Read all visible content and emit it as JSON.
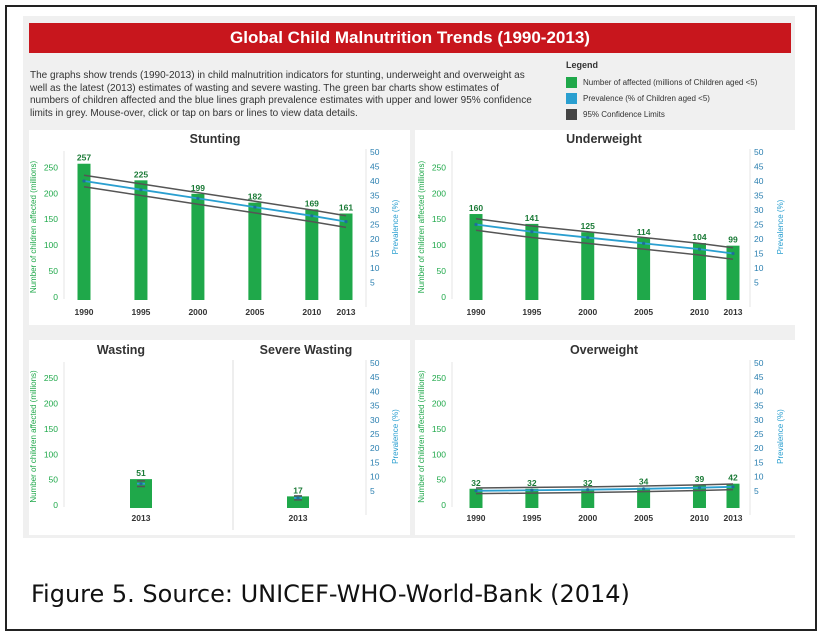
{
  "title": "Global Child Malnutrition Trends (1990-2013)",
  "intro": "The graphs show trends (1990-2013) in child malnutrition indicators for stunting, underweight and overweight as well as the latest (2013) estimates of wasting and severe wasting. The green bar charts show estimates of numbers of children affected and the blue lines graph prevalence estimates with upper and lower 95% confidence limits in grey. Mouse-over, click or tap on bars or lines to view data details.",
  "legend": {
    "title": "Legend",
    "items": [
      {
        "label": "Number of affected (millions of Children aged <5)",
        "color": "#1fa84a"
      },
      {
        "label": "Prevalence (% of Children aged <5)",
        "color": "#2a9fd0"
      },
      {
        "label": "95% Confidence Limits",
        "color": "#444444"
      }
    ]
  },
  "caption": "Figure 5. Source: UNICEF-WHO-World-Bank (2014)",
  "colors": {
    "bar": "#1fa84a",
    "prevalence": "#2a9fd0",
    "ci": "#555555",
    "banner": "#c8161d"
  },
  "chart_data": [
    {
      "type": "bar",
      "title": "Stunting",
      "categories": [
        "1990",
        "1995",
        "2000",
        "2005",
        "2010",
        "2013"
      ],
      "values": [
        257,
        225,
        199,
        182,
        169,
        161
      ],
      "ylabel": "Number of children affected (millions)",
      "y2label": "Prevalence (%)",
      "ylim": [
        0,
        270
      ],
      "y2lim": [
        0,
        50
      ],
      "yticks": [
        0,
        50,
        100,
        150,
        200,
        250
      ],
      "y2ticks": [
        5,
        10,
        15,
        20,
        25,
        30,
        35,
        40,
        45,
        50
      ],
      "prevalence": [
        40,
        37,
        34,
        31,
        28,
        26
      ],
      "ci_upper": [
        42,
        39,
        36,
        33,
        30,
        28
      ],
      "ci_lower": [
        38,
        35,
        32,
        29,
        26,
        24
      ]
    },
    {
      "type": "bar",
      "title": "Underweight",
      "categories": [
        "1990",
        "1995",
        "2000",
        "2005",
        "2010",
        "2013"
      ],
      "values": [
        160,
        141,
        125,
        114,
        104,
        99
      ],
      "ylabel": "Number of children affected (millions)",
      "y2label": "Prevalence (%)",
      "ylim": [
        0,
        270
      ],
      "y2lim": [
        0,
        50
      ],
      "yticks": [
        0,
        50,
        100,
        150,
        200,
        250
      ],
      "y2ticks": [
        5,
        10,
        15,
        20,
        25,
        30,
        35,
        40,
        45,
        50
      ],
      "prevalence": [
        25,
        22.5,
        20.5,
        18.5,
        16.5,
        15
      ],
      "ci_upper": [
        27,
        24.5,
        22.5,
        20.5,
        18.5,
        17
      ],
      "ci_lower": [
        23,
        20.5,
        18.5,
        16.5,
        14.5,
        13
      ]
    },
    {
      "type": "bar",
      "title": "Wasting",
      "categories": [
        "2013"
      ],
      "values": [
        51
      ],
      "ylabel": "Number of children affected (millions)",
      "ylim": [
        0,
        270
      ],
      "yticks": [
        0,
        50,
        100,
        150,
        200,
        250
      ],
      "prevalence": [
        7.5
      ],
      "ci_upper": [
        8.5
      ],
      "ci_lower": [
        6.5
      ]
    },
    {
      "type": "bar",
      "title": "Severe Wasting",
      "categories": [
        "2013"
      ],
      "values": [
        17
      ],
      "y2label": "Prevalence (%)",
      "ylim": [
        0,
        270
      ],
      "y2lim": [
        0,
        50
      ],
      "y2ticks": [
        5,
        10,
        15,
        20,
        25,
        30,
        35,
        40,
        45,
        50
      ],
      "prevalence": [
        2.5
      ],
      "ci_upper": [
        3.2
      ],
      "ci_lower": [
        1.8
      ]
    },
    {
      "type": "bar",
      "title": "Overweight",
      "categories": [
        "1990",
        "1995",
        "2000",
        "2005",
        "2010",
        "2013"
      ],
      "values": [
        32,
        32,
        32,
        34,
        39,
        42
      ],
      "ylabel": "Number of children affected (millions)",
      "y2label": "Prevalence (%)",
      "ylim": [
        0,
        270
      ],
      "y2lim": [
        0,
        50
      ],
      "yticks": [
        0,
        50,
        100,
        150,
        200,
        250
      ],
      "y2ticks": [
        5,
        10,
        15,
        20,
        25,
        30,
        35,
        40,
        45,
        50
      ],
      "prevalence": [
        5,
        5.2,
        5.4,
        5.7,
        6.1,
        6.4
      ],
      "ci_upper": [
        6,
        6.2,
        6.4,
        6.7,
        7.1,
        7.4
      ],
      "ci_lower": [
        4,
        4.2,
        4.4,
        4.7,
        5.1,
        5.4
      ]
    }
  ]
}
